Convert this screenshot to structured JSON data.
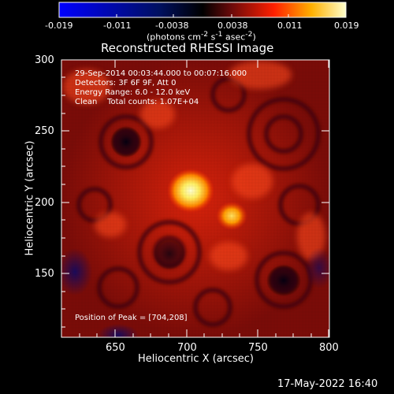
{
  "colorbar": {
    "tick_labels": [
      "-0.019",
      "-0.011",
      "-0.0038",
      "0.0038",
      "0.011",
      "0.019"
    ],
    "units_html": "(photons cm<sup>-2</sup> s<sup>-1</sup> asec<sup>-2</sup>)"
  },
  "image": {
    "title": "Reconstructed RHESSI Image",
    "info": {
      "time_range": "29-Sep-2014 00:03:44.000 to 00:07:16.000",
      "detectors": "Detectors: 3F 6F 9F, Att 0",
      "energy_range": "Energy Range: 6.0 - 12.0 keV",
      "clean": "Clean    Total counts: 1.07E+04"
    },
    "peak_text": "Position of Peak = [704,208]"
  },
  "axes": {
    "xlabel": "Heliocentric X (arcsec)",
    "ylabel": "Heliocentric Y (arcsec)",
    "xticks": [
      "650",
      "700",
      "750",
      "800"
    ],
    "yticks": [
      "300",
      "250",
      "200",
      "150"
    ]
  },
  "footer": {
    "date": "17-May-2022 16:40"
  }
}
